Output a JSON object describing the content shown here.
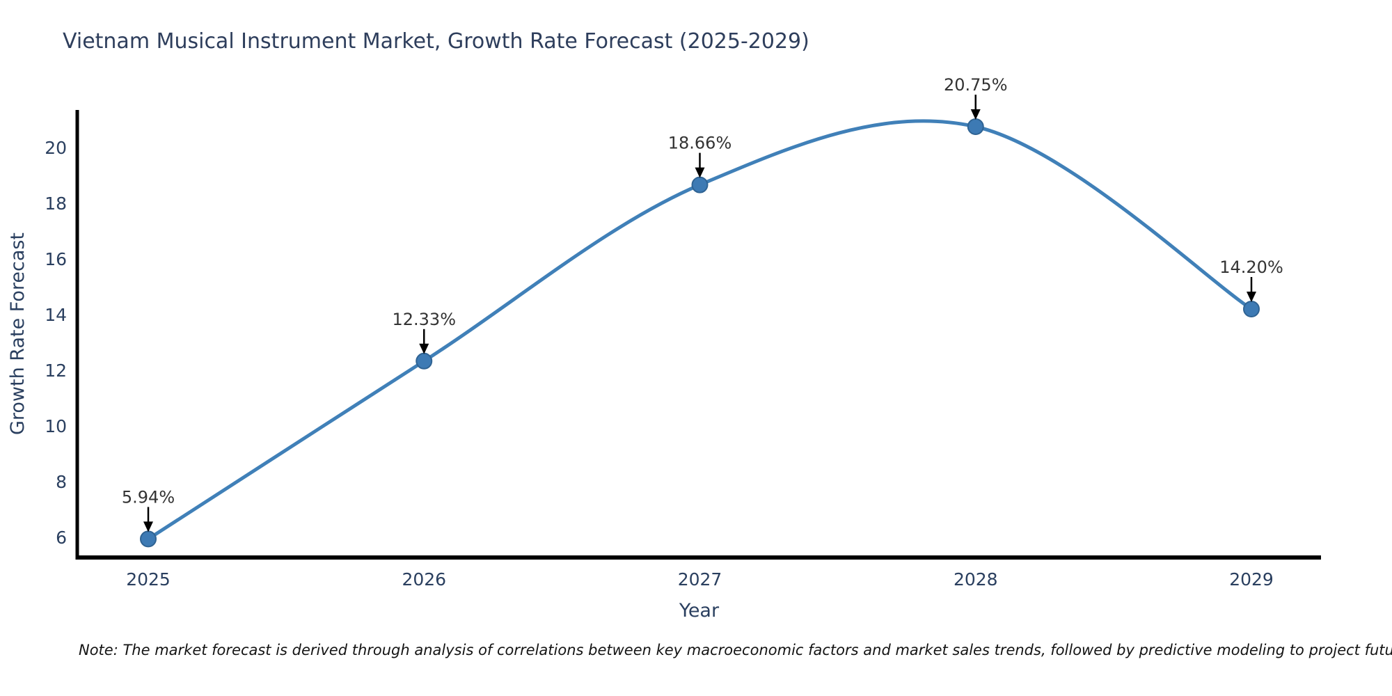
{
  "title": "Vietnam Musical Instrument Market, Growth Rate Forecast (2025-2029)",
  "note": "Note: The market forecast is derived through analysis of correlations between key macroeconomic factors and market sales trends, followed by predictive modeling to project future sales",
  "chart_data": {
    "type": "line",
    "x": [
      2025,
      2026,
      2027,
      2028,
      2029
    ],
    "values": [
      5.94,
      12.33,
      18.66,
      20.75,
      14.2
    ],
    "point_labels": [
      "5.94%",
      "12.33%",
      "18.66%",
      "20.75%",
      "14.20%"
    ],
    "title": "Vietnam Musical Instrument Market, Growth Rate Forecast (2025-2029)",
    "xlabel": "Year",
    "ylabel": "Growth Rate Forecast",
    "yticks": [
      6,
      8,
      10,
      12,
      14,
      16,
      18,
      20
    ],
    "ylim": [
      5.25,
      21.3
    ],
    "grid": false,
    "legend": "none",
    "line_color": "#4080b8",
    "marker_color": "#3d7ab4",
    "marker_edge_color": "#2f6393",
    "text_color": "#2a3f5f",
    "annotation_color": "#333333",
    "arrow_color": "#000000",
    "axis_color": "#000000"
  }
}
